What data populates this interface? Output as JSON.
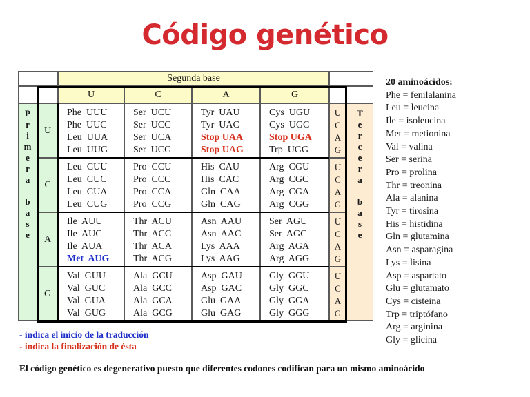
{
  "title": "Código genético",
  "table": {
    "second_base_label": "Segunda base",
    "first_base_label": [
      "P",
      "r",
      "i",
      "m",
      "e",
      "r",
      "a",
      "",
      "b",
      "a",
      "s",
      "e"
    ],
    "third_base_label": [
      "T",
      "e",
      "r",
      "c",
      "e",
      "r",
      "a",
      "",
      "b",
      "a",
      "s",
      "e"
    ],
    "columns": [
      "U",
      "C",
      "A",
      "G"
    ],
    "groups": [
      {
        "first": "U",
        "cells": [
          [
            {
              "t": "Phe  UUU"
            },
            {
              "t": "Phe  UUC"
            },
            {
              "t": "Leu  UUA"
            },
            {
              "t": "Leu  UUG"
            }
          ],
          [
            {
              "t": "Ser  UCU"
            },
            {
              "t": "Ser  UCC"
            },
            {
              "t": "Ser  UCA"
            },
            {
              "t": "Ser  UCG"
            }
          ],
          [
            {
              "t": "Tyr  UAU"
            },
            {
              "t": "Tyr  UAC"
            },
            {
              "t": "Stop UAA",
              "k": "stop"
            },
            {
              "t": "Stop UAG",
              "k": "stop"
            }
          ],
          [
            {
              "t": "Cys  UGU"
            },
            {
              "t": "Cys  UGC"
            },
            {
              "t": "Stop UGA",
              "k": "stop"
            },
            {
              "t": "Trp  UGG"
            }
          ]
        ],
        "third": [
          "U",
          "C",
          "A",
          "G"
        ]
      },
      {
        "first": "C",
        "cells": [
          [
            {
              "t": "Leu  CUU"
            },
            {
              "t": "Leu  CUC"
            },
            {
              "t": "Leu  CUA"
            },
            {
              "t": "Leu  CUG"
            }
          ],
          [
            {
              "t": "Pro  CCU"
            },
            {
              "t": "Pro  CCC"
            },
            {
              "t": "Pro  CCA"
            },
            {
              "t": "Pro  CCG"
            }
          ],
          [
            {
              "t": "His  CAU"
            },
            {
              "t": "His  CAC"
            },
            {
              "t": "Gln  CAA"
            },
            {
              "t": "Gln  CAG"
            }
          ],
          [
            {
              "t": "Arg  CGU"
            },
            {
              "t": "Arg  CGC"
            },
            {
              "t": "Arg  CGA"
            },
            {
              "t": "Arg  CGG"
            }
          ]
        ],
        "third": [
          "U",
          "C",
          "A",
          "G"
        ]
      },
      {
        "first": "A",
        "cells": [
          [
            {
              "t": "Ile  AUU"
            },
            {
              "t": "Ile  AUC"
            },
            {
              "t": "Ile  AUA"
            },
            {
              "t": "Met  AUG",
              "k": "start"
            }
          ],
          [
            {
              "t": "Thr  ACU"
            },
            {
              "t": "Thr  ACC"
            },
            {
              "t": "Thr  ACA"
            },
            {
              "t": "Thr  ACG"
            }
          ],
          [
            {
              "t": "Asn  AAU"
            },
            {
              "t": "Asn  AAC"
            },
            {
              "t": "Lys  AAA"
            },
            {
              "t": "Lys  AAG"
            }
          ],
          [
            {
              "t": "Ser  AGU"
            },
            {
              "t": "Ser  AGC"
            },
            {
              "t": "Arg  AGA"
            },
            {
              "t": "Arg  AGG"
            }
          ]
        ],
        "third": [
          "U",
          "C",
          "A",
          "G"
        ]
      },
      {
        "first": "G",
        "cells": [
          [
            {
              "t": "Val  GUU"
            },
            {
              "t": "Val  GUC"
            },
            {
              "t": "Val  GUA"
            },
            {
              "t": "Val  GUG"
            }
          ],
          [
            {
              "t": "Ala  GCU"
            },
            {
              "t": "Ala  GCC"
            },
            {
              "t": "Ala  GCA"
            },
            {
              "t": "Ala  GCG"
            }
          ],
          [
            {
              "t": "Asp  GAU"
            },
            {
              "t": "Asp  GAC"
            },
            {
              "t": "Glu  GAA"
            },
            {
              "t": "Glu  GAG"
            }
          ],
          [
            {
              "t": "Gly  GGU"
            },
            {
              "t": "Gly  GGC"
            },
            {
              "t": "Gly  GGA"
            },
            {
              "t": "Gly  GGG"
            }
          ]
        ],
        "third": [
          "U",
          "C",
          "A",
          "G"
        ]
      }
    ]
  },
  "legend": {
    "heading": "20 aminoácidos:",
    "items": [
      "Phe = fenilalanina",
      "Leu = leucina",
      "Ile = isoleucina",
      "Met = metionina",
      "Val = valina",
      "Ser = serina",
      "Pro = prolina",
      "Thr = treonina",
      "Ala = alanina",
      "Tyr = tirosina",
      "His = histidina",
      "Gln = glutamina",
      "Asn = asparagina",
      "Lys = lisina",
      "Asp = aspartato",
      "Glu = glutamato",
      "Cys = cisteina",
      "Trp = triptófano",
      "Arg = arginina",
      "Gly = glicina"
    ]
  },
  "notes": {
    "start": "- indica el inicio de la traducción",
    "stop": "- indica la finalización de ésta"
  },
  "footer": "El código genético es degenerativo puesto que diferentes codones codifican para un mismo aminoácido",
  "colors": {
    "title": "#d3292f",
    "stop": "#d7321e",
    "start": "#1f2ec8",
    "header_yellow": "#fdfbc8",
    "first_base_green": "#dcf7dc",
    "third_base_peach": "#fdebd2"
  }
}
